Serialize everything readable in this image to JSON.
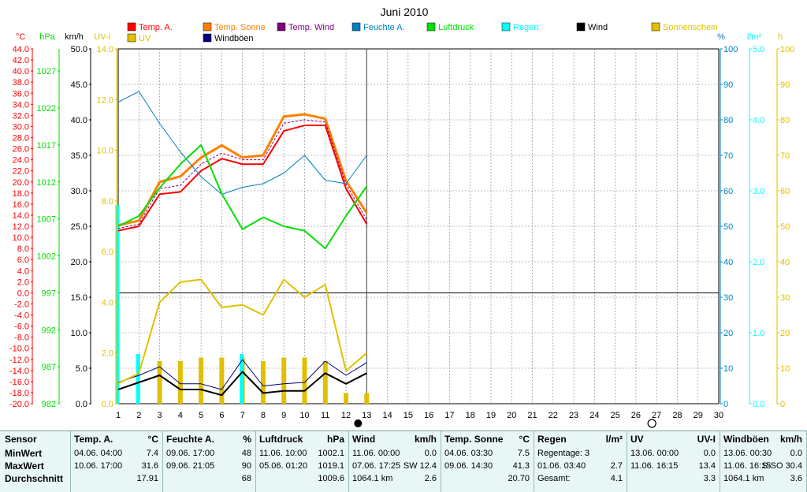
{
  "colors": {
    "temp_a": "#ff0000",
    "temp_sonne": "#ff8000",
    "temp_wind": "#800080",
    "feuchte": "#0080c0",
    "luftdruck": "#00e000",
    "regen": "#00ffff",
    "wind": "#000000",
    "sonnenschein": "#e0c000",
    "uv": "#e0c000",
    "windboeen": "#000080",
    "wind_axis": "#000000",
    "uv_axis": "#e0c000",
    "grid": "#808080"
  },
  "chart_data": {
    "type": "line",
    "title": "Juni 2010",
    "x": [
      1,
      2,
      3,
      4,
      5,
      6,
      7,
      8,
      9,
      10,
      11,
      12,
      13
    ],
    "x_ticks": [
      1,
      2,
      3,
      4,
      5,
      6,
      7,
      8,
      9,
      10,
      11,
      12,
      13,
      14,
      15,
      16,
      17,
      18,
      19,
      20,
      21,
      22,
      23,
      24,
      25,
      26,
      27,
      28,
      29,
      30
    ],
    "xlim": [
      1,
      30
    ],
    "grid": true,
    "legend_position": "top",
    "axes": {
      "temp": {
        "label": "°C",
        "lim": [
          -20,
          44
        ],
        "ticks": [
          "44.0",
          "42.0",
          "40.0",
          "38.0",
          "36.0",
          "34.0",
          "32.0",
          "30.0",
          "28.0",
          "26.0",
          "24.0",
          "22.0",
          "20.0",
          "18.0",
          "16.0",
          "14.0",
          "12.0",
          "10.0",
          "8.0",
          "6.0",
          "4.0",
          "2.0",
          "0.0",
          "-2.0",
          "-4.0",
          "-6.0",
          "-8.0",
          "-10.0",
          "-12.0",
          "-14.0",
          "-16.0",
          "-18.0",
          "-20.0"
        ]
      },
      "pressure": {
        "label": "hPa",
        "lim": [
          982,
          1030
        ],
        "ticks": [
          "1027",
          "1022",
          "1017",
          "1012",
          "1007",
          "1002",
          "997",
          "992",
          "987",
          "982"
        ]
      },
      "wind": {
        "label": "km/h",
        "lim": [
          0,
          50
        ],
        "ticks": [
          "50.0",
          "45.0",
          "40.0",
          "35.0",
          "30.0",
          "25.0",
          "20.0",
          "15.0",
          "10.0",
          "5.0",
          "0.0"
        ]
      },
      "uv": {
        "label": "UV-I",
        "lim": [
          0,
          14
        ],
        "ticks": [
          "14.0",
          "12.0",
          "10.0",
          "8.0",
          "6.0",
          "4.0",
          "2.0",
          "0.0"
        ]
      },
      "humidity": {
        "label": "%",
        "lim": [
          0,
          100
        ],
        "ticks": [
          "100",
          "90",
          "80",
          "70",
          "60",
          "50",
          "40",
          "30",
          "20",
          "10",
          "0"
        ]
      },
      "rain": {
        "label": "l/m²",
        "lim": [
          0,
          5
        ],
        "ticks": [
          "5.0",
          "4.0",
          "3.0",
          "2.0",
          "1.0",
          "0.0"
        ]
      },
      "sun": {
        "label": "h",
        "lim": [
          0,
          100
        ],
        "ticks": [
          "100",
          "90",
          "80",
          "70",
          "60",
          "50",
          "40",
          "30",
          "20",
          "10",
          "0"
        ]
      }
    },
    "series": [
      {
        "key": "temp_a",
        "name": "Temp. A.",
        "axis": "temp",
        "values": [
          11.2,
          12.0,
          17.8,
          18.2,
          22.0,
          24.2,
          23.2,
          23.2,
          29.2,
          30.2,
          30.2,
          18.8,
          12.4
        ]
      },
      {
        "key": "temp_sonne",
        "name": "Temp. Sonne",
        "axis": "temp",
        "values": [
          12.2,
          13.0,
          20.0,
          21.0,
          24.4,
          26.6,
          24.4,
          24.8,
          31.8,
          32.2,
          31.4,
          20.2,
          14.4
        ]
      },
      {
        "key": "temp_wind",
        "name": "Temp. Wind",
        "axis": "temp",
        "values": [
          11.6,
          12.4,
          18.8,
          19.4,
          23.2,
          25.2,
          24.0,
          24.0,
          30.6,
          31.2,
          30.8,
          19.6,
          13.2
        ]
      },
      {
        "key": "feuchte",
        "name": "Feuchte A.",
        "axis": "humidity",
        "values": [
          85,
          88,
          79,
          71,
          64,
          59,
          61,
          62,
          65,
          70,
          63,
          62,
          70
        ]
      },
      {
        "key": "luftdruck",
        "name": "Luftdruck",
        "axis": "pressure",
        "values": [
          1006.0,
          1007.4,
          1011.2,
          1014.4,
          1017.0,
          1010.4,
          1005.6,
          1007.2,
          1006.0,
          1005.4,
          1003.0,
          1007.4,
          1011.4
        ]
      },
      {
        "key": "wind",
        "name": "Wind",
        "axis": "wind",
        "values": [
          2.0,
          3.0,
          4.0,
          2.0,
          2.0,
          1.2,
          4.5,
          1.5,
          1.8,
          1.8,
          4.3,
          2.8,
          4.3
        ]
      },
      {
        "key": "windboeen",
        "name": "Windböen",
        "axis": "wind",
        "values": [
          3.0,
          4.0,
          5.2,
          2.8,
          2.8,
          2.0,
          6.2,
          2.5,
          2.8,
          3.0,
          6.0,
          4.0,
          5.8
        ]
      },
      {
        "key": "uv",
        "name": "UV",
        "axis": "uv",
        "values": [
          0.8,
          1.2,
          4.0,
          4.8,
          4.9,
          3.8,
          3.9,
          3.5,
          4.9,
          4.2,
          4.7,
          1.3,
          2.0
        ]
      }
    ],
    "bars": [
      {
        "key": "sonnenschein",
        "name": "Sonnenschein",
        "axis": "sun",
        "values": [
          0,
          0,
          12,
          12,
          13,
          13,
          13,
          12,
          13,
          13,
          12,
          3,
          3
        ]
      },
      {
        "key": "regen",
        "name": "Regen",
        "axis": "rain",
        "values": [
          2.8,
          0.7,
          0,
          0,
          0,
          0,
          0.7,
          0,
          0,
          0,
          0,
          0,
          0
        ]
      }
    ]
  },
  "legend": [
    {
      "key": "temp_a",
      "label": "Temp. A."
    },
    {
      "key": "temp_sonne",
      "label": "Temp. Sonne"
    },
    {
      "key": "temp_wind",
      "label": "Temp. Wind"
    },
    {
      "key": "feuchte",
      "label": "Feuchte A."
    },
    {
      "key": "luftdruck",
      "label": "Luftdruck"
    },
    {
      "key": "regen",
      "label": "Regen"
    },
    {
      "key": "wind",
      "label": "Wind"
    },
    {
      "key": "sonnenschein",
      "label": "Sonnenschein"
    },
    {
      "key": "uv",
      "label": "UV"
    },
    {
      "key": "windboeen",
      "label": "Windböen"
    }
  ],
  "stats": {
    "row_labels": [
      "Sensor",
      "MinWert",
      "MaxWert",
      "Durchschnitt"
    ],
    "columns": [
      {
        "title": "Temp. A.",
        "unit": "°C",
        "rows": [
          [
            "04.06.  04:00",
            "7.4"
          ],
          [
            "10.06.  17:00",
            "31.6"
          ],
          [
            "",
            "17.91"
          ]
        ]
      },
      {
        "title": "Feuchte A.",
        "unit": "%",
        "rows": [
          [
            "09.06.  17:00",
            "48"
          ],
          [
            "09.06.  21:05",
            "90"
          ],
          [
            "",
            "68"
          ]
        ]
      },
      {
        "title": "Luftdruck",
        "unit": "hPa",
        "rows": [
          [
            "11.06.  10:00",
            "1002.1"
          ],
          [
            "05.06.  01:20",
            "1019.1"
          ],
          [
            "",
            "1009.6"
          ]
        ]
      },
      {
        "title": "Wind",
        "unit": "km/h",
        "rows": [
          [
            "11.06.  00:00",
            "0.0"
          ],
          [
            "07.06.  17:25",
            "SW 12.4"
          ],
          [
            "1064.1 km",
            "2.6"
          ]
        ]
      },
      {
        "title": "Temp. Sonne",
        "unit": "°C",
        "rows": [
          [
            "04.06.  03:30",
            "7.5"
          ],
          [
            "09.06.  14:30",
            "41.3"
          ],
          [
            "",
            "20.70"
          ]
        ]
      },
      {
        "title": "Regen",
        "unit": "l/m²",
        "rows": [
          [
            "Regentage: 3",
            ""
          ],
          [
            "01.06.  03:40",
            "2.7"
          ],
          [
            "Gesamt:",
            "4.1"
          ]
        ]
      },
      {
        "title": "UV",
        "unit": "UV-I",
        "rows": [
          [
            "13.06.  00:00",
            "0.0"
          ],
          [
            "11.06.  16:15",
            "13.4"
          ],
          [
            "",
            "3.3"
          ]
        ]
      },
      {
        "title": "Windböen",
        "unit": "km/h",
        "rows": [
          [
            "13.06.  00:30",
            "0.0"
          ],
          [
            "11.06.  16:15",
            "S-SO 30.4"
          ],
          [
            "1064.1 km",
            "3.6"
          ]
        ]
      }
    ]
  }
}
